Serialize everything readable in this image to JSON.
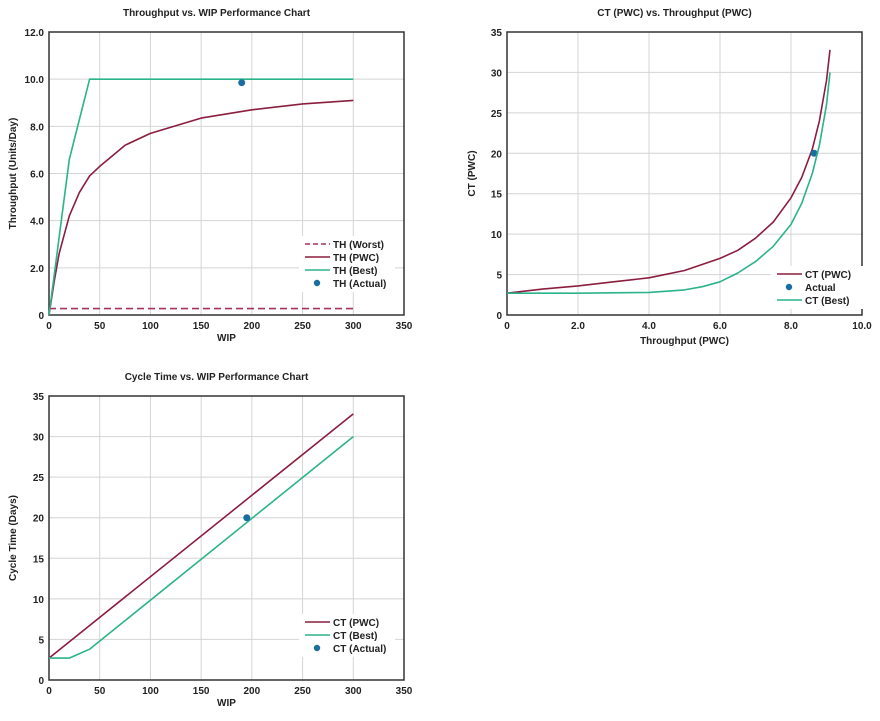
{
  "colors": {
    "pwc": "#8b1e3f",
    "best": "#2bb38a",
    "worst": "#a8325a",
    "actual": "#1a6fa0",
    "grid": "#d4d4d4",
    "frame": "#333333"
  },
  "chart_data": [
    {
      "type": "line",
      "title": "Throughput vs. WIP Performance Chart",
      "xlabel": "WIP",
      "ylabel": "Throughput (Units/Day)",
      "xlim": [
        0,
        350
      ],
      "ylim": [
        0,
        12
      ],
      "xticks": [
        0,
        50,
        100,
        150,
        200,
        250,
        300,
        350
      ],
      "xtick_labels": [
        "0",
        "50",
        "100",
        "150",
        "200",
        "250",
        "300",
        "350"
      ],
      "yticks": [
        0,
        2,
        4,
        6,
        8,
        10,
        12
      ],
      "ytick_labels": [
        "0",
        "2.0",
        "4.0",
        "6.0",
        "8.0",
        "10.0",
        "12.0"
      ],
      "grid": true,
      "legend": "bottom-right",
      "series": [
        {
          "name": "TH (Worst)",
          "style": "dashed",
          "color_key": "worst",
          "x": [
            0,
            300
          ],
          "y": [
            0.27,
            0.27
          ]
        },
        {
          "name": "TH (PWC)",
          "style": "line",
          "color_key": "pwc",
          "x": [
            0,
            5,
            10,
            20,
            30,
            40,
            50,
            75,
            100,
            150,
            200,
            250,
            300
          ],
          "y": [
            0,
            1.4,
            2.6,
            4.2,
            5.2,
            5.9,
            6.3,
            7.2,
            7.7,
            8.35,
            8.7,
            8.95,
            9.1
          ]
        },
        {
          "name": "TH (Best)",
          "style": "line",
          "color_key": "best",
          "x": [
            0,
            20,
            40,
            300
          ],
          "y": [
            0,
            6.6,
            10,
            10
          ]
        },
        {
          "name": "TH (Actual)",
          "style": "point",
          "color_key": "actual",
          "x": [
            190
          ],
          "y": [
            9.85
          ]
        }
      ]
    },
    {
      "type": "line",
      "title": "CT (PWC) vs. Throughput (PWC)",
      "xlabel": "Throughput (PWC)",
      "ylabel": "CT (PWC)",
      "xlim": [
        0,
        10
      ],
      "ylim": [
        0,
        35
      ],
      "xticks": [
        0,
        2,
        4,
        6,
        8,
        10
      ],
      "xtick_labels": [
        "0",
        "2.0",
        "4.0",
        "6.0",
        "8.0",
        "10.0"
      ],
      "yticks": [
        0,
        5,
        10,
        15,
        20,
        25,
        30,
        35
      ],
      "ytick_labels": [
        "0",
        "5",
        "10",
        "15",
        "20",
        "25",
        "30",
        "35"
      ],
      "grid": true,
      "legend": "bottom-right",
      "series": [
        {
          "name": "CT (PWC)",
          "style": "line",
          "color_key": "pwc",
          "x": [
            0,
            1,
            2,
            3,
            4,
            5,
            6,
            6.5,
            7,
            7.5,
            8,
            8.3,
            8.6,
            8.8,
            9.0,
            9.1
          ],
          "y": [
            2.7,
            3.2,
            3.6,
            4.1,
            4.6,
            5.5,
            7.0,
            8.0,
            9.5,
            11.5,
            14.5,
            17.0,
            20.5,
            24.0,
            29.0,
            32.8
          ]
        },
        {
          "name": "Actual",
          "style": "point",
          "color_key": "actual",
          "x": [
            8.65
          ],
          "y": [
            20
          ]
        },
        {
          "name": "CT (Best)",
          "style": "line",
          "color_key": "best",
          "x": [
            0,
            2,
            4,
            5,
            5.5,
            6,
            6.5,
            7,
            7.5,
            8,
            8.3,
            8.6,
            8.8,
            9.0,
            9.1
          ],
          "y": [
            2.7,
            2.7,
            2.8,
            3.1,
            3.5,
            4.1,
            5.2,
            6.6,
            8.5,
            11.2,
            13.8,
            17.5,
            21.0,
            26.0,
            30.0
          ]
        }
      ]
    },
    {
      "type": "line",
      "title": "Cycle Time vs. WIP Performance Chart",
      "xlabel": "WIP",
      "ylabel": "Cycle Time (Days)",
      "xlim": [
        0,
        350
      ],
      "ylim": [
        0,
        35
      ],
      "xticks": [
        0,
        50,
        100,
        150,
        200,
        250,
        300,
        350
      ],
      "xtick_labels": [
        "0",
        "50",
        "100",
        "150",
        "200",
        "250",
        "300",
        "350"
      ],
      "yticks": [
        0,
        5,
        10,
        15,
        20,
        25,
        30,
        35
      ],
      "ytick_labels": [
        "0",
        "5",
        "10",
        "15",
        "20",
        "25",
        "30",
        "35"
      ],
      "grid": true,
      "legend": "bottom-right",
      "series": [
        {
          "name": "CT (PWC)",
          "style": "line",
          "color_key": "pwc",
          "x": [
            0,
            300
          ],
          "y": [
            2.7,
            32.8
          ]
        },
        {
          "name": "CT (Best)",
          "style": "line",
          "color_key": "best",
          "x": [
            0,
            20,
            40,
            300
          ],
          "y": [
            2.7,
            2.7,
            3.8,
            30
          ]
        },
        {
          "name": "CT (Actual)",
          "style": "point",
          "color_key": "actual",
          "x": [
            195
          ],
          "y": [
            20
          ]
        }
      ]
    }
  ]
}
